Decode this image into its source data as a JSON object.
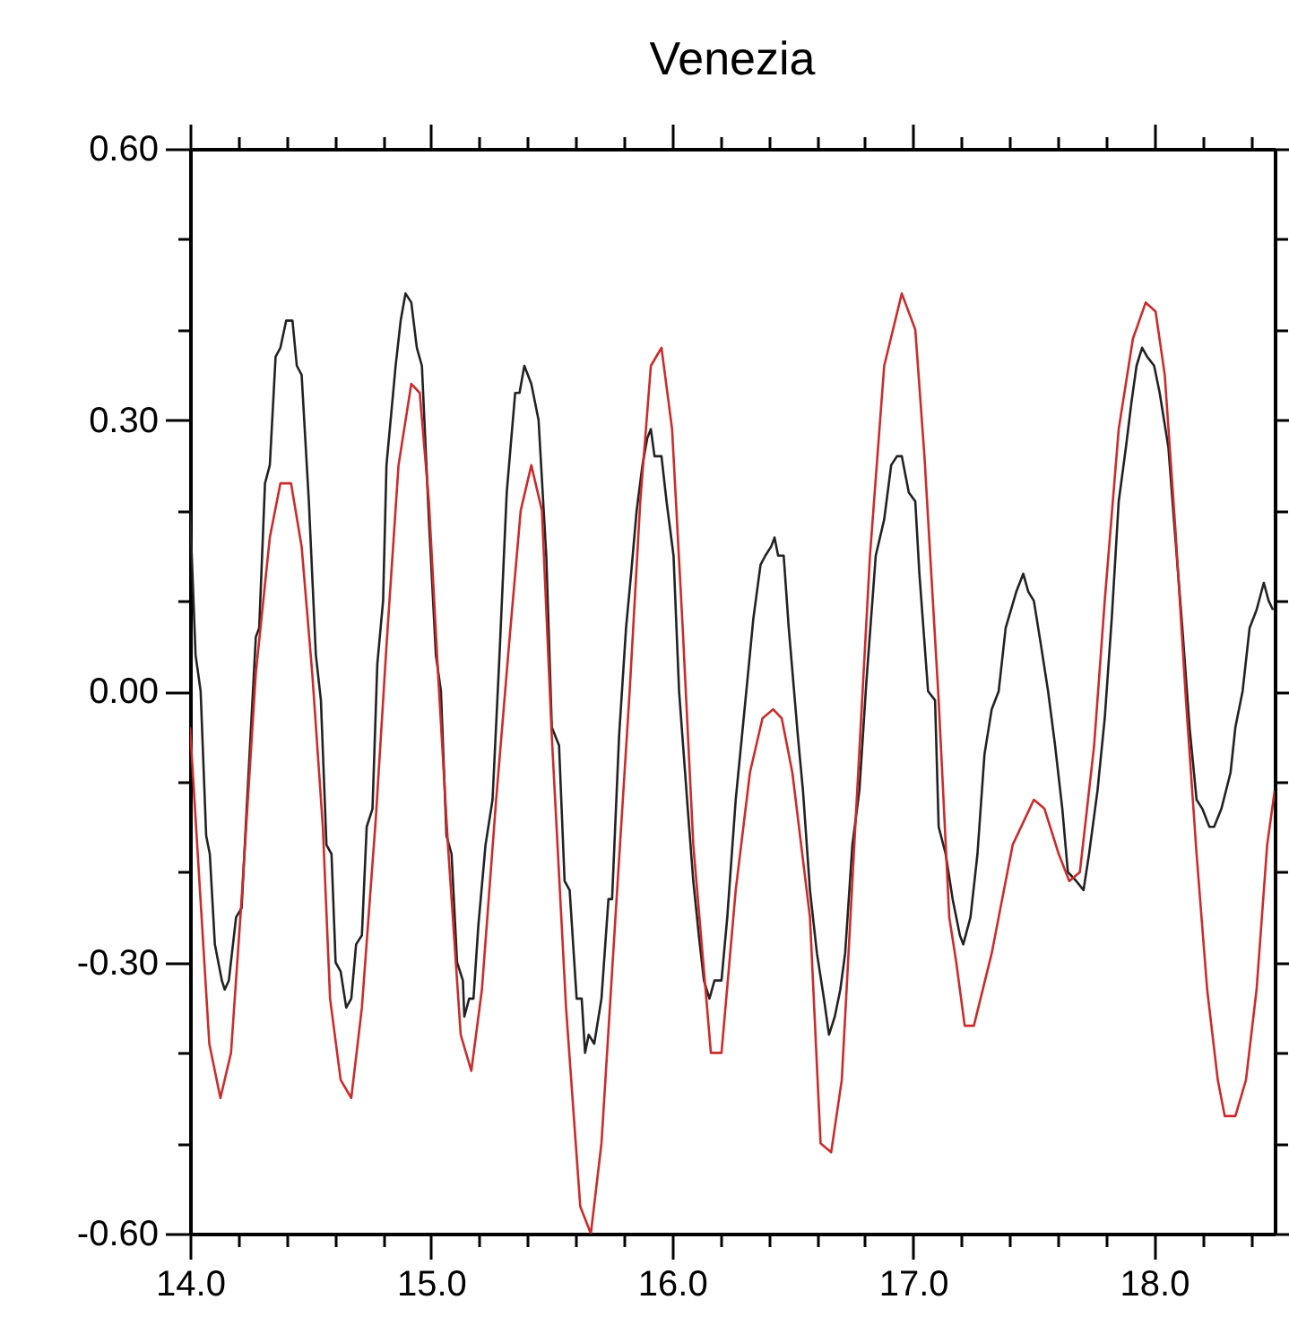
{
  "chart_data": {
    "type": "line",
    "title": "Venezia",
    "xlim": [
      14.0,
      18.5
    ],
    "xticks": [
      {
        "value": 14,
        "label": "14.0"
      },
      {
        "value": 14.2,
        "label": null
      },
      {
        "value": 14.4,
        "label": null
      },
      {
        "value": 14.6,
        "label": null
      },
      {
        "value": 14.8,
        "label": null
      },
      {
        "value": 15,
        "label": "15.0"
      },
      {
        "value": 15.2,
        "label": null
      },
      {
        "value": 15.4,
        "label": null
      },
      {
        "value": 15.6,
        "label": null
      },
      {
        "value": 15.8,
        "label": null
      },
      {
        "value": 16,
        "label": "16.0"
      },
      {
        "value": 16.2,
        "label": null
      },
      {
        "value": 16.4,
        "label": null
      },
      {
        "value": 16.6,
        "label": null
      },
      {
        "value": 16.8,
        "label": null
      },
      {
        "value": 17,
        "label": "17.0"
      },
      {
        "value": 17.2,
        "label": null
      },
      {
        "value": 17.4,
        "label": null
      },
      {
        "value": 17.6,
        "label": null
      },
      {
        "value": 17.8,
        "label": null
      },
      {
        "value": 18,
        "label": "18.0"
      },
      {
        "value": 18.2,
        "label": null
      },
      {
        "value": 18.4,
        "label": null
      }
    ],
    "ylim": [
      -0.6,
      0.6
    ],
    "yticks": [
      {
        "value": -0.6,
        "label": "-0.60"
      },
      {
        "value": -0.5,
        "label": null
      },
      {
        "value": -0.4,
        "label": null
      },
      {
        "value": -0.3,
        "label": "-0.30"
      },
      {
        "value": -0.2,
        "label": null
      },
      {
        "value": -0.1,
        "label": null
      },
      {
        "value": 0,
        "label": "0.00"
      },
      {
        "value": 0.1,
        "label": null
      },
      {
        "value": 0.2,
        "label": null
      },
      {
        "value": 0.3,
        "label": "0.30"
      },
      {
        "value": 0.4,
        "label": null
      },
      {
        "value": 0.5,
        "label": null
      },
      {
        "value": 0.6,
        "label": "0.60"
      }
    ],
    "series": [
      {
        "color": "#222222",
        "x": [
          14.0,
          14.023,
          14.044,
          14.067,
          14.082,
          14.103,
          14.132,
          14.144,
          14.161,
          14.191,
          14.214,
          14.235,
          14.273,
          14.287,
          14.311,
          14.331,
          14.355,
          14.375,
          14.399,
          14.425,
          14.443,
          14.463,
          14.493,
          14.522,
          14.543,
          14.566,
          14.587,
          14.604,
          14.625,
          14.648,
          14.669,
          14.689,
          14.713,
          14.733,
          14.757,
          14.777,
          14.801,
          14.815,
          14.853,
          14.874,
          14.894,
          14.918,
          14.941,
          14.962,
          14.991,
          15.02,
          15.041,
          15.064,
          15.085,
          15.108,
          15.132,
          15.138,
          15.158,
          15.176,
          15.196,
          15.226,
          15.255,
          15.284,
          15.314,
          15.349,
          15.367,
          15.387,
          15.416,
          15.446,
          15.478,
          15.501,
          15.531,
          15.554,
          15.575,
          15.604,
          15.625,
          15.639,
          15.654,
          15.677,
          15.707,
          15.736,
          15.751,
          15.78,
          15.809,
          15.83,
          15.853,
          15.877,
          15.897,
          15.912,
          15.927,
          15.956,
          15.977,
          16.006,
          16.029,
          16.065,
          16.088,
          16.111,
          16.132,
          16.155,
          16.176,
          16.205,
          16.229,
          16.264,
          16.308,
          16.337,
          16.367,
          16.387,
          16.411,
          16.425,
          16.44,
          16.463,
          16.484,
          16.522,
          16.543,
          16.572,
          16.601,
          16.63,
          16.651,
          16.675,
          16.698,
          16.718,
          16.748,
          16.777,
          16.806,
          16.845,
          16.88,
          16.909,
          16.933,
          16.953,
          16.982,
          17.009,
          17.026,
          17.062,
          17.091,
          17.106,
          17.135,
          17.164,
          17.194,
          17.208,
          17.238,
          17.267,
          17.296,
          17.326,
          17.355,
          17.384,
          17.428,
          17.457,
          17.478,
          17.501,
          17.531,
          17.56,
          17.589,
          17.619,
          17.642,
          17.677,
          17.707,
          17.73,
          17.765,
          17.795,
          17.824,
          17.853,
          17.883,
          17.906,
          17.927,
          17.95,
          17.971,
          18.0,
          18.023,
          18.059,
          18.082,
          18.117,
          18.147,
          18.176,
          18.2,
          18.229,
          18.249,
          18.279,
          18.317,
          18.337,
          18.367,
          18.396,
          18.425,
          18.455,
          18.475,
          18.493
        ],
        "values": [
          0.2,
          0.04,
          0.0,
          -0.16,
          -0.18,
          -0.28,
          -0.32,
          -0.33,
          -0.32,
          -0.25,
          -0.24,
          -0.13,
          0.06,
          0.07,
          0.23,
          0.25,
          0.37,
          0.38,
          0.41,
          0.41,
          0.36,
          0.35,
          0.21,
          0.04,
          -0.01,
          -0.17,
          -0.18,
          -0.3,
          -0.31,
          -0.35,
          -0.34,
          -0.28,
          -0.27,
          -0.15,
          -0.13,
          0.03,
          0.1,
          0.25,
          0.36,
          0.41,
          0.44,
          0.43,
          0.38,
          0.36,
          0.19,
          0.04,
          0.0,
          -0.16,
          -0.18,
          -0.3,
          -0.32,
          -0.36,
          -0.34,
          -0.34,
          -0.26,
          -0.17,
          -0.12,
          0.04,
          0.22,
          0.33,
          0.33,
          0.36,
          0.34,
          0.3,
          0.15,
          -0.04,
          -0.06,
          -0.21,
          -0.22,
          -0.34,
          -0.34,
          -0.4,
          -0.38,
          -0.39,
          -0.34,
          -0.23,
          -0.23,
          -0.05,
          0.07,
          0.13,
          0.2,
          0.25,
          0.28,
          0.29,
          0.26,
          0.26,
          0.21,
          0.15,
          0.0,
          -0.13,
          -0.21,
          -0.27,
          -0.32,
          -0.34,
          -0.32,
          -0.32,
          -0.25,
          -0.12,
          0.0,
          0.08,
          0.14,
          0.15,
          0.16,
          0.17,
          0.15,
          0.15,
          0.07,
          -0.05,
          -0.11,
          -0.22,
          -0.29,
          -0.34,
          -0.38,
          -0.36,
          -0.33,
          -0.29,
          -0.17,
          -0.11,
          0.01,
          0.15,
          0.19,
          0.25,
          0.26,
          0.26,
          0.22,
          0.21,
          0.13,
          0.0,
          -0.01,
          -0.15,
          -0.18,
          -0.23,
          -0.27,
          -0.28,
          -0.25,
          -0.18,
          -0.07,
          -0.02,
          0.0,
          0.07,
          0.11,
          0.13,
          0.11,
          0.1,
          0.05,
          0.0,
          -0.06,
          -0.13,
          -0.2,
          -0.21,
          -0.22,
          -0.18,
          -0.11,
          -0.03,
          0.08,
          0.21,
          0.27,
          0.32,
          0.36,
          0.38,
          0.37,
          0.36,
          0.33,
          0.27,
          0.19,
          0.07,
          -0.04,
          -0.12,
          -0.13,
          -0.15,
          -0.15,
          -0.13,
          -0.09,
          -0.04,
          0.0,
          0.07,
          0.09,
          0.12,
          0.1,
          0.09
        ]
      },
      {
        "color": "#cc2b2b",
        "x": [
          14.0,
          14.08,
          14.126,
          14.17,
          14.214,
          14.273,
          14.331,
          14.375,
          14.419,
          14.463,
          14.507,
          14.551,
          14.581,
          14.625,
          14.669,
          14.713,
          14.771,
          14.815,
          14.865,
          14.918,
          14.953,
          14.991,
          15.029,
          15.07,
          15.123,
          15.167,
          15.211,
          15.27,
          15.323,
          15.372,
          15.416,
          15.46,
          15.501,
          15.56,
          15.619,
          15.663,
          15.707,
          15.765,
          15.824,
          15.868,
          15.912,
          15.956,
          16.0,
          16.044,
          16.088,
          16.161,
          16.205,
          16.264,
          16.323,
          16.375,
          16.419,
          16.455,
          16.499,
          16.572,
          16.616,
          16.66,
          16.704,
          16.762,
          16.821,
          16.88,
          16.953,
          17.009,
          17.047,
          17.106,
          17.15,
          17.179,
          17.214,
          17.252,
          17.326,
          17.413,
          17.501,
          17.545,
          17.604,
          17.648,
          17.692,
          17.751,
          17.795,
          17.853,
          17.912,
          17.965,
          18.006,
          18.044,
          18.088,
          18.132,
          18.176,
          18.22,
          18.264,
          18.293,
          18.337,
          18.381,
          18.425,
          18.469,
          18.5
        ],
        "values": [
          -0.04,
          -0.39,
          -0.45,
          -0.4,
          -0.23,
          0.02,
          0.17,
          0.23,
          0.23,
          0.16,
          0.02,
          -0.15,
          -0.34,
          -0.43,
          -0.45,
          -0.35,
          -0.14,
          0.05,
          0.25,
          0.34,
          0.33,
          0.21,
          0.02,
          -0.17,
          -0.38,
          -0.42,
          -0.33,
          -0.12,
          0.05,
          0.2,
          0.25,
          0.2,
          -0.05,
          -0.35,
          -0.57,
          -0.6,
          -0.5,
          -0.25,
          0.0,
          0.21,
          0.36,
          0.38,
          0.29,
          0.07,
          -0.17,
          -0.4,
          -0.4,
          -0.22,
          -0.09,
          -0.03,
          -0.02,
          -0.03,
          -0.09,
          -0.25,
          -0.5,
          -0.51,
          -0.43,
          -0.14,
          0.15,
          0.36,
          0.44,
          0.4,
          0.26,
          -0.01,
          -0.25,
          -0.3,
          -0.37,
          -0.37,
          -0.29,
          -0.17,
          -0.12,
          -0.13,
          -0.18,
          -0.21,
          -0.2,
          -0.06,
          0.1,
          0.29,
          0.39,
          0.43,
          0.42,
          0.35,
          0.18,
          -0.01,
          -0.18,
          -0.33,
          -0.43,
          -0.47,
          -0.47,
          -0.43,
          -0.33,
          -0.17,
          -0.11
        ]
      }
    ]
  }
}
